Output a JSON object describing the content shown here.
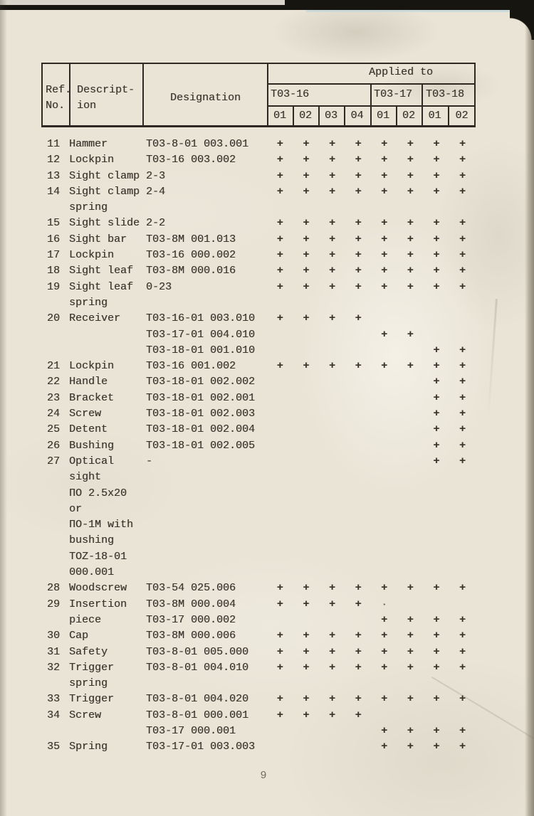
{
  "page": {
    "number": "9"
  },
  "colors": {
    "paper": "#e9e4d6",
    "ink": "#3a342c",
    "table_line": "#2e2a23",
    "scan_edge": "#17150f",
    "page_number": "#716c61"
  },
  "table": {
    "headers": {
      "ref_no": [
        "Ref.",
        "No."
      ],
      "description": [
        "Descript-",
        "ion"
      ],
      "designation": "Designation",
      "applied_to": "Applied to",
      "model_groups": [
        {
          "label": "T03-16",
          "cols": [
            "01",
            "02",
            "03",
            "04"
          ]
        },
        {
          "label": "T03-17",
          "cols": [
            "01",
            "02"
          ]
        },
        {
          "label": "T03-18",
          "cols": [
            "01",
            "02"
          ]
        }
      ]
    },
    "rows": [
      {
        "ref": "11",
        "desc": [
          "Hammer"
        ],
        "entries": [
          {
            "designation": "T03-8-01 003.001",
            "marks": [
              "+",
              "+",
              "+",
              "+",
              "+",
              "+",
              "+",
              "+"
            ]
          }
        ]
      },
      {
        "ref": "12",
        "desc": [
          "Lockpin"
        ],
        "entries": [
          {
            "designation": "T03-16 003.002",
            "marks": [
              "+",
              "+",
              "+",
              "+",
              "+",
              "+",
              "+",
              "+"
            ]
          }
        ]
      },
      {
        "ref": "13",
        "desc": [
          "Sight clamp"
        ],
        "entries": [
          {
            "designation": "2-3",
            "marks": [
              "+",
              "+",
              "+",
              "+",
              "+",
              "+",
              "+",
              "+"
            ]
          }
        ]
      },
      {
        "ref": "14",
        "desc": [
          "Sight clamp",
          "spring"
        ],
        "entries": [
          {
            "designation": "2-4",
            "marks": [
              "+",
              "+",
              "+",
              "+",
              "+",
              "+",
              "+",
              "+"
            ]
          }
        ]
      },
      {
        "ref": "15",
        "desc": [
          "Sight slide"
        ],
        "entries": [
          {
            "designation": "2-2",
            "marks": [
              "+",
              "+",
              "+",
              "+",
              "+",
              "+",
              "+",
              "+"
            ]
          }
        ]
      },
      {
        "ref": "16",
        "desc": [
          "Sight bar"
        ],
        "entries": [
          {
            "designation": "T03-8M 001.013",
            "marks": [
              "+",
              "+",
              "+",
              "+",
              "+",
              "+",
              "+",
              "+"
            ]
          }
        ]
      },
      {
        "ref": "17",
        "desc": [
          "Lockpin"
        ],
        "entries": [
          {
            "designation": "T03-16 000.002",
            "marks": [
              "+",
              "+",
              "+",
              "+",
              "+",
              "+",
              "+",
              "+"
            ]
          }
        ]
      },
      {
        "ref": "18",
        "desc": [
          "Sight leaf"
        ],
        "entries": [
          {
            "designation": "T03-8M 000.016",
            "marks": [
              "+",
              "+",
              "+",
              "+",
              "+",
              "+",
              "+",
              "+"
            ]
          }
        ]
      },
      {
        "ref": "19",
        "desc": [
          "Sight leaf",
          "spring"
        ],
        "entries": [
          {
            "designation": "0-23",
            "marks": [
              "+",
              "+",
              "+",
              "+",
              "+",
              "+",
              "+",
              "+"
            ]
          }
        ]
      },
      {
        "ref": "20",
        "desc": [
          "Receiver"
        ],
        "entries": [
          {
            "designation": "T03-16-01 003.010",
            "marks": [
              "+",
              "+",
              "+",
              "+",
              "",
              "",
              "",
              ""
            ]
          },
          {
            "designation": "T03-17-01 004.010",
            "marks": [
              "",
              "",
              "",
              "",
              "+",
              "+",
              "",
              ""
            ]
          },
          {
            "designation": "T03-18-01 001.010",
            "marks": [
              "",
              "",
              "",
              "",
              "",
              "",
              "+",
              "+"
            ]
          }
        ]
      },
      {
        "ref": "21",
        "desc": [
          "Lockpin"
        ],
        "entries": [
          {
            "designation": "T03-16 001.002",
            "marks": [
              "+",
              "+",
              "+",
              "+",
              "+",
              "+",
              "+",
              "+"
            ]
          }
        ]
      },
      {
        "ref": "22",
        "desc": [
          "Handle"
        ],
        "entries": [
          {
            "designation": "T03-18-01 002.002",
            "marks": [
              "",
              "",
              "",
              "",
              "",
              "",
              "+",
              "+"
            ]
          }
        ]
      },
      {
        "ref": "23",
        "desc": [
          "Bracket"
        ],
        "entries": [
          {
            "designation": "T03-18-01 002.001",
            "marks": [
              "",
              "",
              "",
              "",
              "",
              "",
              "+",
              "+"
            ]
          }
        ]
      },
      {
        "ref": "24",
        "desc": [
          "Screw"
        ],
        "entries": [
          {
            "designation": "T03-18-01 002.003",
            "marks": [
              "",
              "",
              "",
              "",
              "",
              "",
              "+",
              "+"
            ]
          }
        ]
      },
      {
        "ref": "25",
        "desc": [
          "Detent"
        ],
        "entries": [
          {
            "designation": "T03-18-01 002.004",
            "marks": [
              "",
              "",
              "",
              "",
              "",
              "",
              "+",
              "+"
            ]
          }
        ]
      },
      {
        "ref": "26",
        "desc": [
          "Bushing"
        ],
        "entries": [
          {
            "designation": "T03-18-01 002.005",
            "marks": [
              "",
              "",
              "",
              "",
              "",
              "",
              "+",
              "+"
            ]
          }
        ]
      },
      {
        "ref": "27",
        "desc": [
          "Optical",
          "sight",
          "ПО 2.5x20",
          "or",
          "ПО-1M with",
          "bushing",
          "TOZ-18-01",
          "000.001"
        ],
        "entries": [
          {
            "designation": "-",
            "marks": [
              "",
              "",
              "",
              "",
              "",
              "",
              "+",
              "+"
            ]
          }
        ]
      },
      {
        "ref": "28",
        "desc": [
          "Woodscrew"
        ],
        "entries": [
          {
            "designation": "T03-54 025.006",
            "marks": [
              "+",
              "+",
              "+",
              "+",
              "+",
              "+",
              "+",
              "+"
            ]
          }
        ]
      },
      {
        "ref": "29",
        "desc": [
          "Insertion",
          "piece"
        ],
        "entries": [
          {
            "designation": "T03-8M 000.004",
            "marks": [
              "+",
              "+",
              "+",
              "+",
              "·",
              "",
              "",
              ""
            ]
          },
          {
            "designation": "T03-17 000.002",
            "marks": [
              "",
              "",
              "",
              "",
              "+",
              "+",
              "+",
              "+"
            ]
          }
        ]
      },
      {
        "ref": "30",
        "desc": [
          "Cap"
        ],
        "entries": [
          {
            "designation": "T03-8M 000.006",
            "marks": [
              "+",
              "+",
              "+",
              "+",
              "+",
              "+",
              "+",
              "+"
            ]
          }
        ]
      },
      {
        "ref": "31",
        "desc": [
          "Safety"
        ],
        "entries": [
          {
            "designation": "T03-8-01 005.000",
            "marks": [
              "+",
              "+",
              "+",
              "+",
              "+",
              "+",
              "+",
              "+"
            ]
          }
        ]
      },
      {
        "ref": "32",
        "desc": [
          "Trigger",
          "spring"
        ],
        "entries": [
          {
            "designation": "T03-8-01 004.010",
            "marks": [
              "+",
              "+",
              "+",
              "+",
              "+",
              "+",
              "+",
              "+"
            ]
          }
        ]
      },
      {
        "ref": "33",
        "desc": [
          "Trigger"
        ],
        "entries": [
          {
            "designation": "T03-8-01 004.020",
            "marks": [
              "+",
              "+",
              "+",
              "+",
              "+",
              "+",
              "+",
              "+"
            ]
          }
        ]
      },
      {
        "ref": "34",
        "desc": [
          "Screw"
        ],
        "entries": [
          {
            "designation": "T03-8-01 000.001",
            "marks": [
              "+",
              "+",
              "+",
              "+",
              "",
              "",
              "",
              ""
            ]
          },
          {
            "designation": "T03-17 000.001",
            "marks": [
              "",
              "",
              "",
              "",
              "+",
              "+",
              "+",
              "+"
            ]
          }
        ]
      },
      {
        "ref": "35",
        "desc": [
          "Spring"
        ],
        "entries": [
          {
            "designation": "T03-17-01 003.003",
            "marks": [
              "",
              "",
              "",
              "",
              "+",
              "+",
              "+",
              "+"
            ]
          }
        ]
      }
    ]
  }
}
